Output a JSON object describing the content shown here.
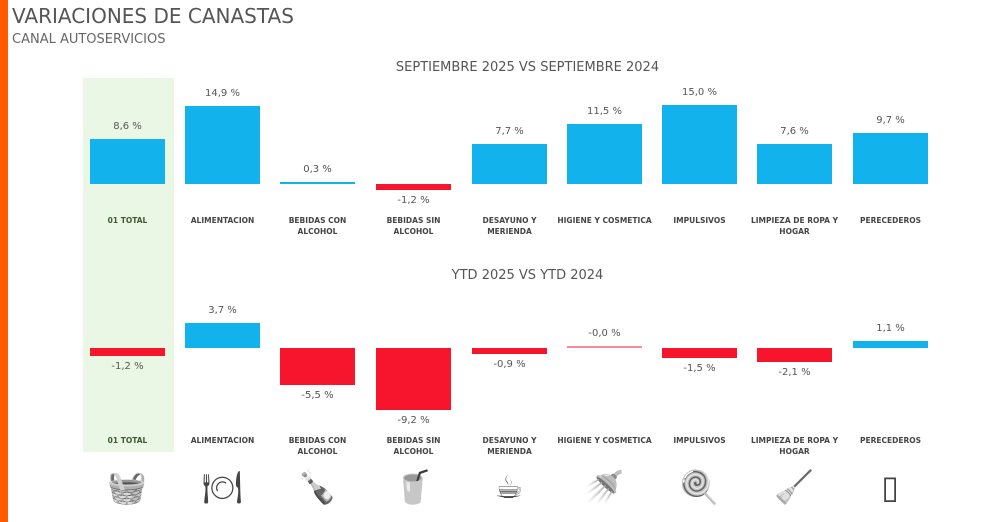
{
  "header": {
    "title": "VARIACIONES DE CANASTAS",
    "subtitle": "CANAL AUTOSERVICIOS"
  },
  "colors": {
    "positive": "#12b3ec",
    "negative": "#f7152d",
    "highlight": "#eaf7e4",
    "accent": "#ff5a00"
  },
  "chart_data": [
    {
      "type": "bar",
      "title": "SEPTIEMBRE 2025 VS SEPTIEMBRE 2024",
      "categories": [
        "01 TOTAL",
        "ALIMENTACION",
        "BEBIDAS CON ALCOHOL",
        "BEBIDAS SIN ALCOHOL",
        "DESAYUNO Y MERIENDA",
        "HIGIENE Y COSMETICA",
        "IMPULSIVOS",
        "LIMPIEZA DE ROPA Y HOGAR",
        "PERECEDEROS"
      ],
      "values": [
        8.6,
        14.9,
        0.3,
        -1.2,
        7.7,
        11.5,
        15.0,
        7.6,
        9.7
      ],
      "labels": [
        "8,6 %",
        "14,9 %",
        "0,3 %",
        "-1,2 %",
        "7,7 %",
        "11,5 %",
        "15,0 %",
        "7,6 %",
        "9,7 %"
      ],
      "highlighted_category": "01 TOTAL"
    },
    {
      "type": "bar",
      "title": "YTD 2025 VS YTD 2024",
      "categories": [
        "01 TOTAL",
        "ALIMENTACION",
        "BEBIDAS CON ALCOHOL",
        "BEBIDAS SIN ALCOHOL",
        "DESAYUNO Y MERIENDA",
        "HIGIENE Y COSMETICA",
        "IMPULSIVOS",
        "LIMPIEZA DE ROPA Y HOGAR",
        "PERECEDEROS"
      ],
      "values": [
        -1.2,
        3.7,
        -5.5,
        -9.2,
        -0.9,
        -0.0,
        -1.5,
        -2.1,
        1.1
      ],
      "labels": [
        "-1,2 %",
        "3,7 %",
        "-5,5 %",
        "-9,2 %",
        "-0,9 %",
        "-0,0 %",
        "-1,5 %",
        "-2,1 %",
        "1,1 %"
      ],
      "highlighted_category": "01 TOTAL"
    }
  ],
  "icons": [
    "basket-icon",
    "plate-cutlery-icon",
    "wine-bottle-icon",
    "soda-cup-icon",
    "coffee-cup-icon",
    "shower-icon",
    "lollipop-icon",
    "broom-icon",
    "fridge-icon"
  ],
  "icon_glyphs": [
    "🧺",
    "🍽",
    "🍾",
    "🥤",
    "☕",
    "🚿",
    "🍭",
    "🧹",
    "▯"
  ]
}
